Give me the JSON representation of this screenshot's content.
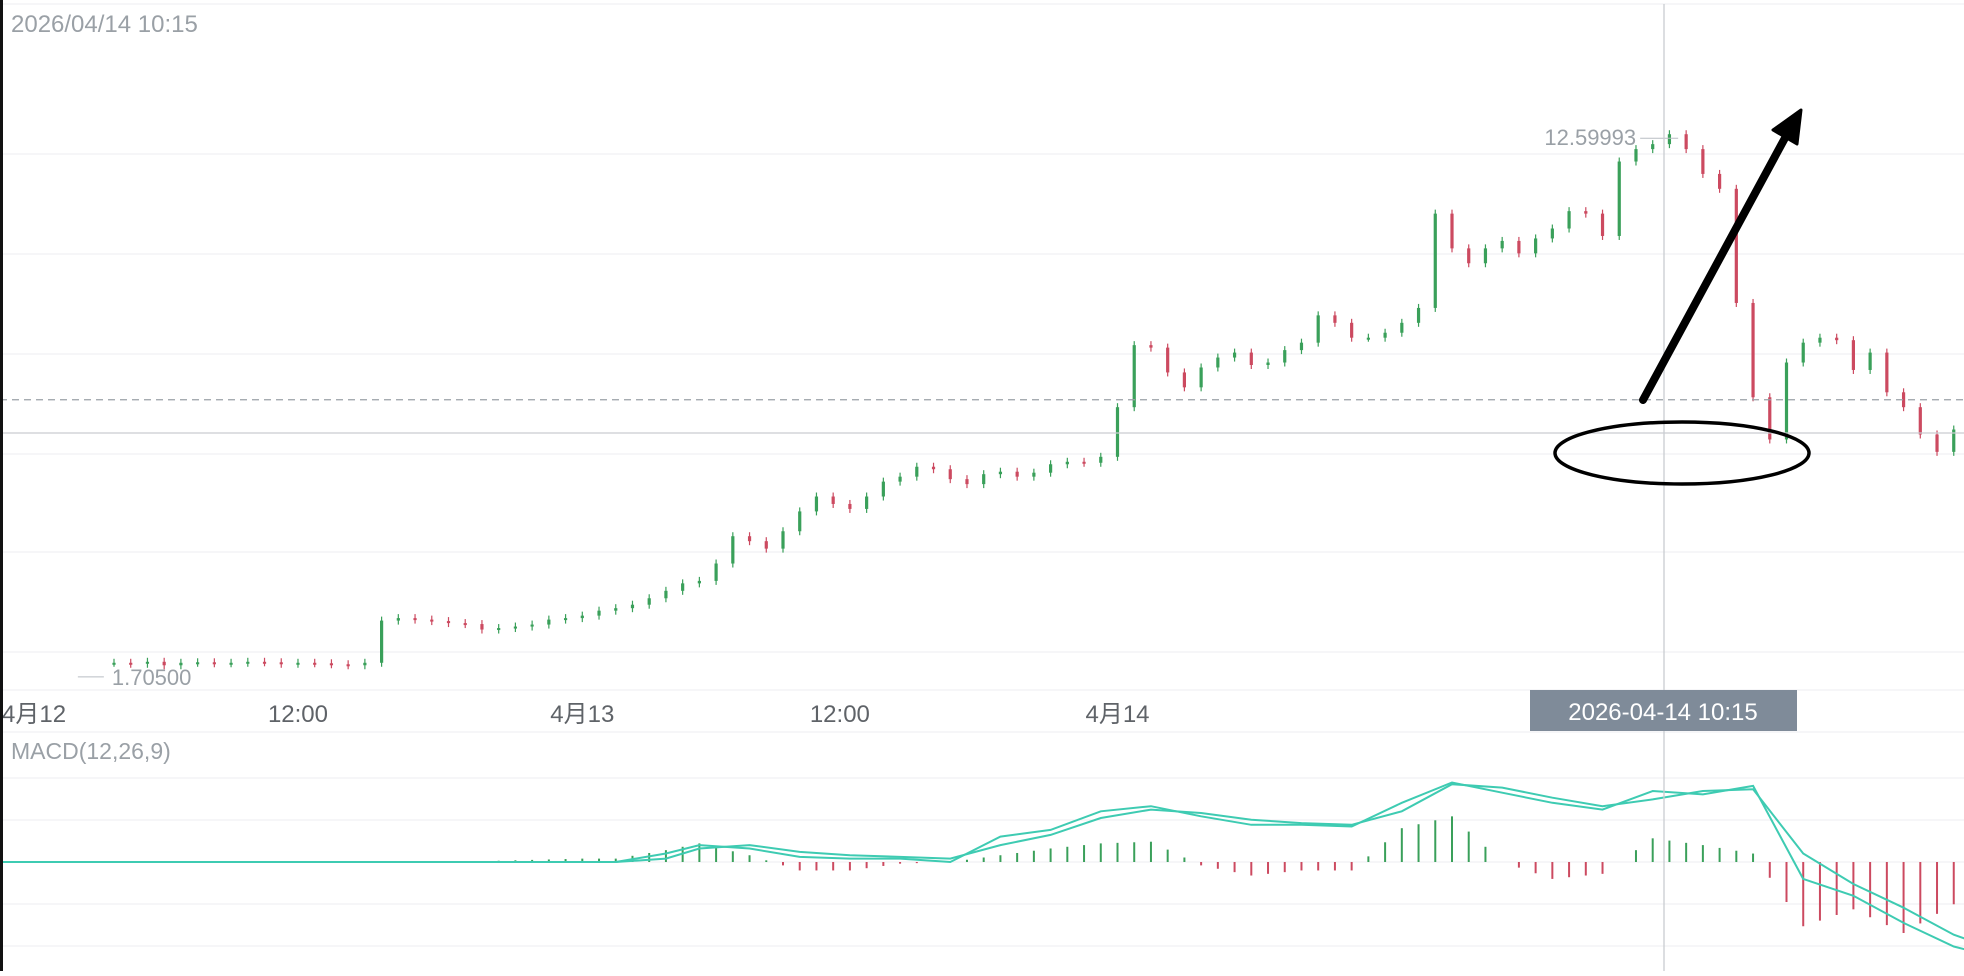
{
  "header": {
    "timestamp": "2026/04/14 10:15"
  },
  "colors": {
    "up": "#3aa05a",
    "down": "#cc4a60",
    "macd_line": "#3ecbb2",
    "grid": "#eceef1",
    "text": "#9aa0a6",
    "crosshair_badge": "#7f8b99",
    "annotation": "#000000"
  },
  "crosshair": {
    "time_label": "2026-04-14 10:15"
  },
  "chart_data": [
    {
      "type": "candlestick",
      "title": "",
      "xlabel": "",
      "ylabel": "",
      "x_ticks": [
        "4月12",
        "12:00",
        "4月13",
        "12:00",
        "4月14"
      ],
      "x_range": [
        -0.9,
        57.9
      ],
      "ylim": [
        1.2,
        14.7
      ],
      "grid": true,
      "high_label": "12.59993",
      "low_label": "1.70500",
      "high": 12.59993,
      "low": 1.705,
      "reference_price": 7.25,
      "price_hours": [
        0.0,
        0.5,
        1.0,
        1.5,
        2.0,
        2.5,
        3.0,
        3.5,
        4.0,
        4.5,
        5.0,
        5.5,
        6.0,
        6.5,
        7.0,
        7.5,
        8.0,
        8.5,
        9.0,
        9.5,
        10.0,
        10.5,
        11.0,
        11.5,
        12.0,
        12.5,
        13.0,
        13.5,
        14.0,
        14.5,
        15.0,
        15.5,
        16.0,
        16.5,
        17.0,
        17.5,
        18.0,
        18.5,
        19.0,
        19.5,
        20.0,
        20.5,
        21.0,
        21.5,
        22.0,
        22.5,
        23.0,
        23.5,
        24.0,
        24.5,
        25.0,
        25.5,
        26.0,
        26.5,
        27.0,
        27.5,
        28.0,
        28.5,
        29.0,
        29.5,
        30.0,
        30.5,
        31.0,
        31.5,
        32.0,
        32.5,
        33.0,
        33.5,
        34.0,
        34.5,
        35.0,
        35.5,
        36.0,
        36.5,
        37.0,
        37.5,
        38.0,
        38.5,
        39.0,
        39.5,
        40.0,
        40.5,
        41.0,
        41.5,
        42.0,
        42.5,
        43.0,
        43.5,
        44.0,
        44.5,
        45.0,
        45.5,
        46.0,
        46.5,
        47.0,
        47.5,
        48.0,
        48.5,
        49.0,
        49.5,
        50.0,
        50.5,
        51.0,
        51.5,
        52.0,
        52.5,
        53.0,
        53.5,
        54.0,
        54.5,
        55.0,
        55.5,
        56.0
      ],
      "price_values": [
        1.95,
        1.93,
        1.97,
        1.9,
        1.95,
        1.96,
        1.94,
        1.95,
        1.97,
        1.96,
        1.93,
        1.95,
        1.94,
        1.92,
        1.9,
        1.95,
        2.8,
        2.85,
        2.82,
        2.79,
        2.75,
        2.73,
        2.62,
        2.65,
        2.68,
        2.72,
        2.82,
        2.85,
        2.9,
        3.0,
        3.05,
        3.12,
        3.25,
        3.4,
        3.55,
        3.6,
        3.95,
        4.5,
        4.4,
        4.25,
        4.6,
        5.0,
        5.3,
        5.15,
        5.05,
        5.3,
        5.6,
        5.7,
        5.9,
        5.85,
        5.65,
        5.55,
        5.75,
        5.8,
        5.7,
        5.78,
        5.95,
        6.0,
        5.98,
        6.1,
        7.1,
        8.35,
        8.3,
        7.8,
        7.5,
        7.9,
        8.1,
        8.2,
        7.95,
        8.0,
        8.25,
        8.4,
        8.95,
        8.8,
        8.5,
        8.5,
        8.6,
        8.8,
        9.1,
        11.0,
        10.3,
        10.0,
        10.3,
        10.45,
        10.2,
        10.5,
        10.7,
        11.05,
        11.0,
        10.55,
        12.05,
        12.3,
        12.4,
        12.6,
        12.3,
        11.8,
        11.5,
        9.2,
        7.3,
        6.45,
        8.0,
        8.4,
        8.5,
        8.45,
        7.85,
        8.2,
        7.4,
        7.1,
        6.55,
        6.2,
        6.65,
        6.05,
        6.5
      ]
    },
    {
      "type": "line",
      "title": "MACD(12,26,9)",
      "xlabel": "",
      "ylabel": "",
      "ylim": [
        -0.54,
        0.54
      ],
      "series": [
        {
          "name": "",
          "x": [
            0,
            5,
            10,
            15,
            16.5,
            17.5,
            19.0,
            20.5,
            22.0,
            23.5,
            25.0,
            26.5,
            28.0,
            29.5,
            31.0,
            32.5,
            34.0,
            35.5,
            37.0,
            38.5,
            40.0,
            41.5,
            43.0,
            44.5,
            46.0,
            47.5,
            49.0,
            50.5,
            52.0,
            53.5,
            55.0,
            56.0
          ],
          "values": [
            0.0,
            0.0,
            0.0,
            0.0,
            0.05,
            0.1,
            0.08,
            0.03,
            0.02,
            0.02,
            0.0,
            0.15,
            0.19,
            0.3,
            0.33,
            0.27,
            0.22,
            0.22,
            0.21,
            0.35,
            0.47,
            0.41,
            0.35,
            0.31,
            0.42,
            0.4,
            0.45,
            -0.1,
            -0.2,
            -0.36,
            -0.5,
            -0.55
          ]
        },
        {
          "name": "",
          "x": [
            0,
            5,
            10,
            15,
            16.5,
            17.5,
            19.0,
            20.5,
            22.0,
            23.5,
            25.0,
            26.5,
            28.0,
            29.5,
            31.0,
            32.5,
            34.0,
            35.5,
            37.0,
            38.5,
            40.0,
            41.5,
            43.0,
            44.5,
            46.0,
            47.5,
            49.0,
            50.5,
            52.0,
            53.5,
            55.0,
            56.0
          ],
          "values": [
            0.0,
            0.0,
            0.0,
            0.0,
            0.02,
            0.08,
            0.1,
            0.06,
            0.04,
            0.03,
            0.02,
            0.1,
            0.16,
            0.26,
            0.31,
            0.29,
            0.25,
            0.23,
            0.22,
            0.3,
            0.46,
            0.44,
            0.38,
            0.33,
            0.37,
            0.42,
            0.43,
            0.05,
            -0.13,
            -0.27,
            -0.43,
            -0.5
          ]
        }
      ],
      "histogram": {
        "x": [
          0,
          5,
          10,
          14,
          15,
          16.5,
          17.5,
          19.0,
          20.5,
          22.0,
          23.5,
          25.0,
          26.5,
          28.0,
          29.5,
          31.0,
          32.5,
          34.0,
          35.5,
          37.0,
          38.5,
          40.0,
          41.5,
          43.0,
          44.5,
          46.0,
          47.5,
          49.0,
          50.5,
          52.0,
          53.5,
          55.0,
          56.0
        ],
        "values": [
          0.0,
          0.0,
          0.0,
          0.02,
          0.02,
          0.07,
          0.11,
          0.04,
          -0.05,
          -0.05,
          -0.01,
          0.0,
          0.04,
          0.08,
          0.11,
          0.12,
          -0.02,
          -0.08,
          -0.05,
          -0.05,
          0.2,
          0.27,
          0.0,
          -0.1,
          -0.07,
          0.14,
          0.1,
          0.05,
          -0.38,
          -0.28,
          -0.42,
          -0.25,
          -0.2
        ]
      }
    }
  ]
}
